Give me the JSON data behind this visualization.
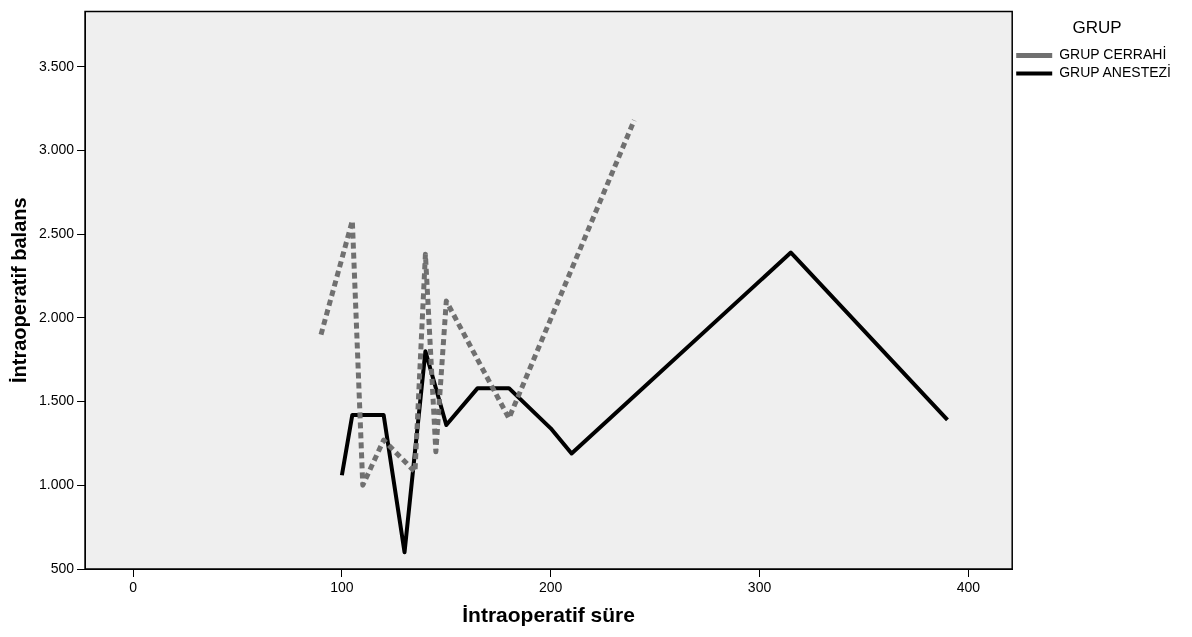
{
  "chart_data": {
    "type": "line",
    "xlabel": "İntraoperatif süre",
    "ylabel": "İntraoperatif balans",
    "legend_title": "GRUP",
    "legend": "top right",
    "grid": false,
    "marker": "none",
    "xlim": [
      -23,
      421
    ],
    "xticks": [
      0,
      100,
      200,
      300,
      400
    ],
    "ylim": [
      500,
      3830
    ],
    "yticks": [
      500,
      {
        "value": 1000,
        "label": "1.000"
      },
      {
        "value": 1500,
        "label": "1.500"
      },
      {
        "value": 2000,
        "label": "2.000"
      },
      {
        "value": 2500,
        "label": "2.500"
      },
      {
        "value": 3000,
        "label": "3.000"
      },
      {
        "value": 3500,
        "label": "3.500"
      }
    ],
    "series": [
      {
        "name": "GRUP CERRAHİ",
        "color": "#707070",
        "line_style": "dashed",
        "x": [
          90,
          105,
          110,
          120,
          135,
          140,
          145,
          150,
          180,
          240
        ],
        "values": [
          1900,
          2580,
          1000,
          1270,
          1080,
          2380,
          1200,
          2100,
          1400,
          3180
        ]
      },
      {
        "name": "GRUP ANESTEZİ",
        "color": "#000000",
        "line_style": "solid",
        "x": [
          100,
          105,
          120,
          130,
          140,
          150,
          165,
          180,
          200,
          210,
          315,
          390
        ],
        "values": [
          1060,
          1420,
          1420,
          600,
          1800,
          1360,
          1580,
          1580,
          1340,
          1190,
          2390,
          1390
        ]
      }
    ]
  }
}
